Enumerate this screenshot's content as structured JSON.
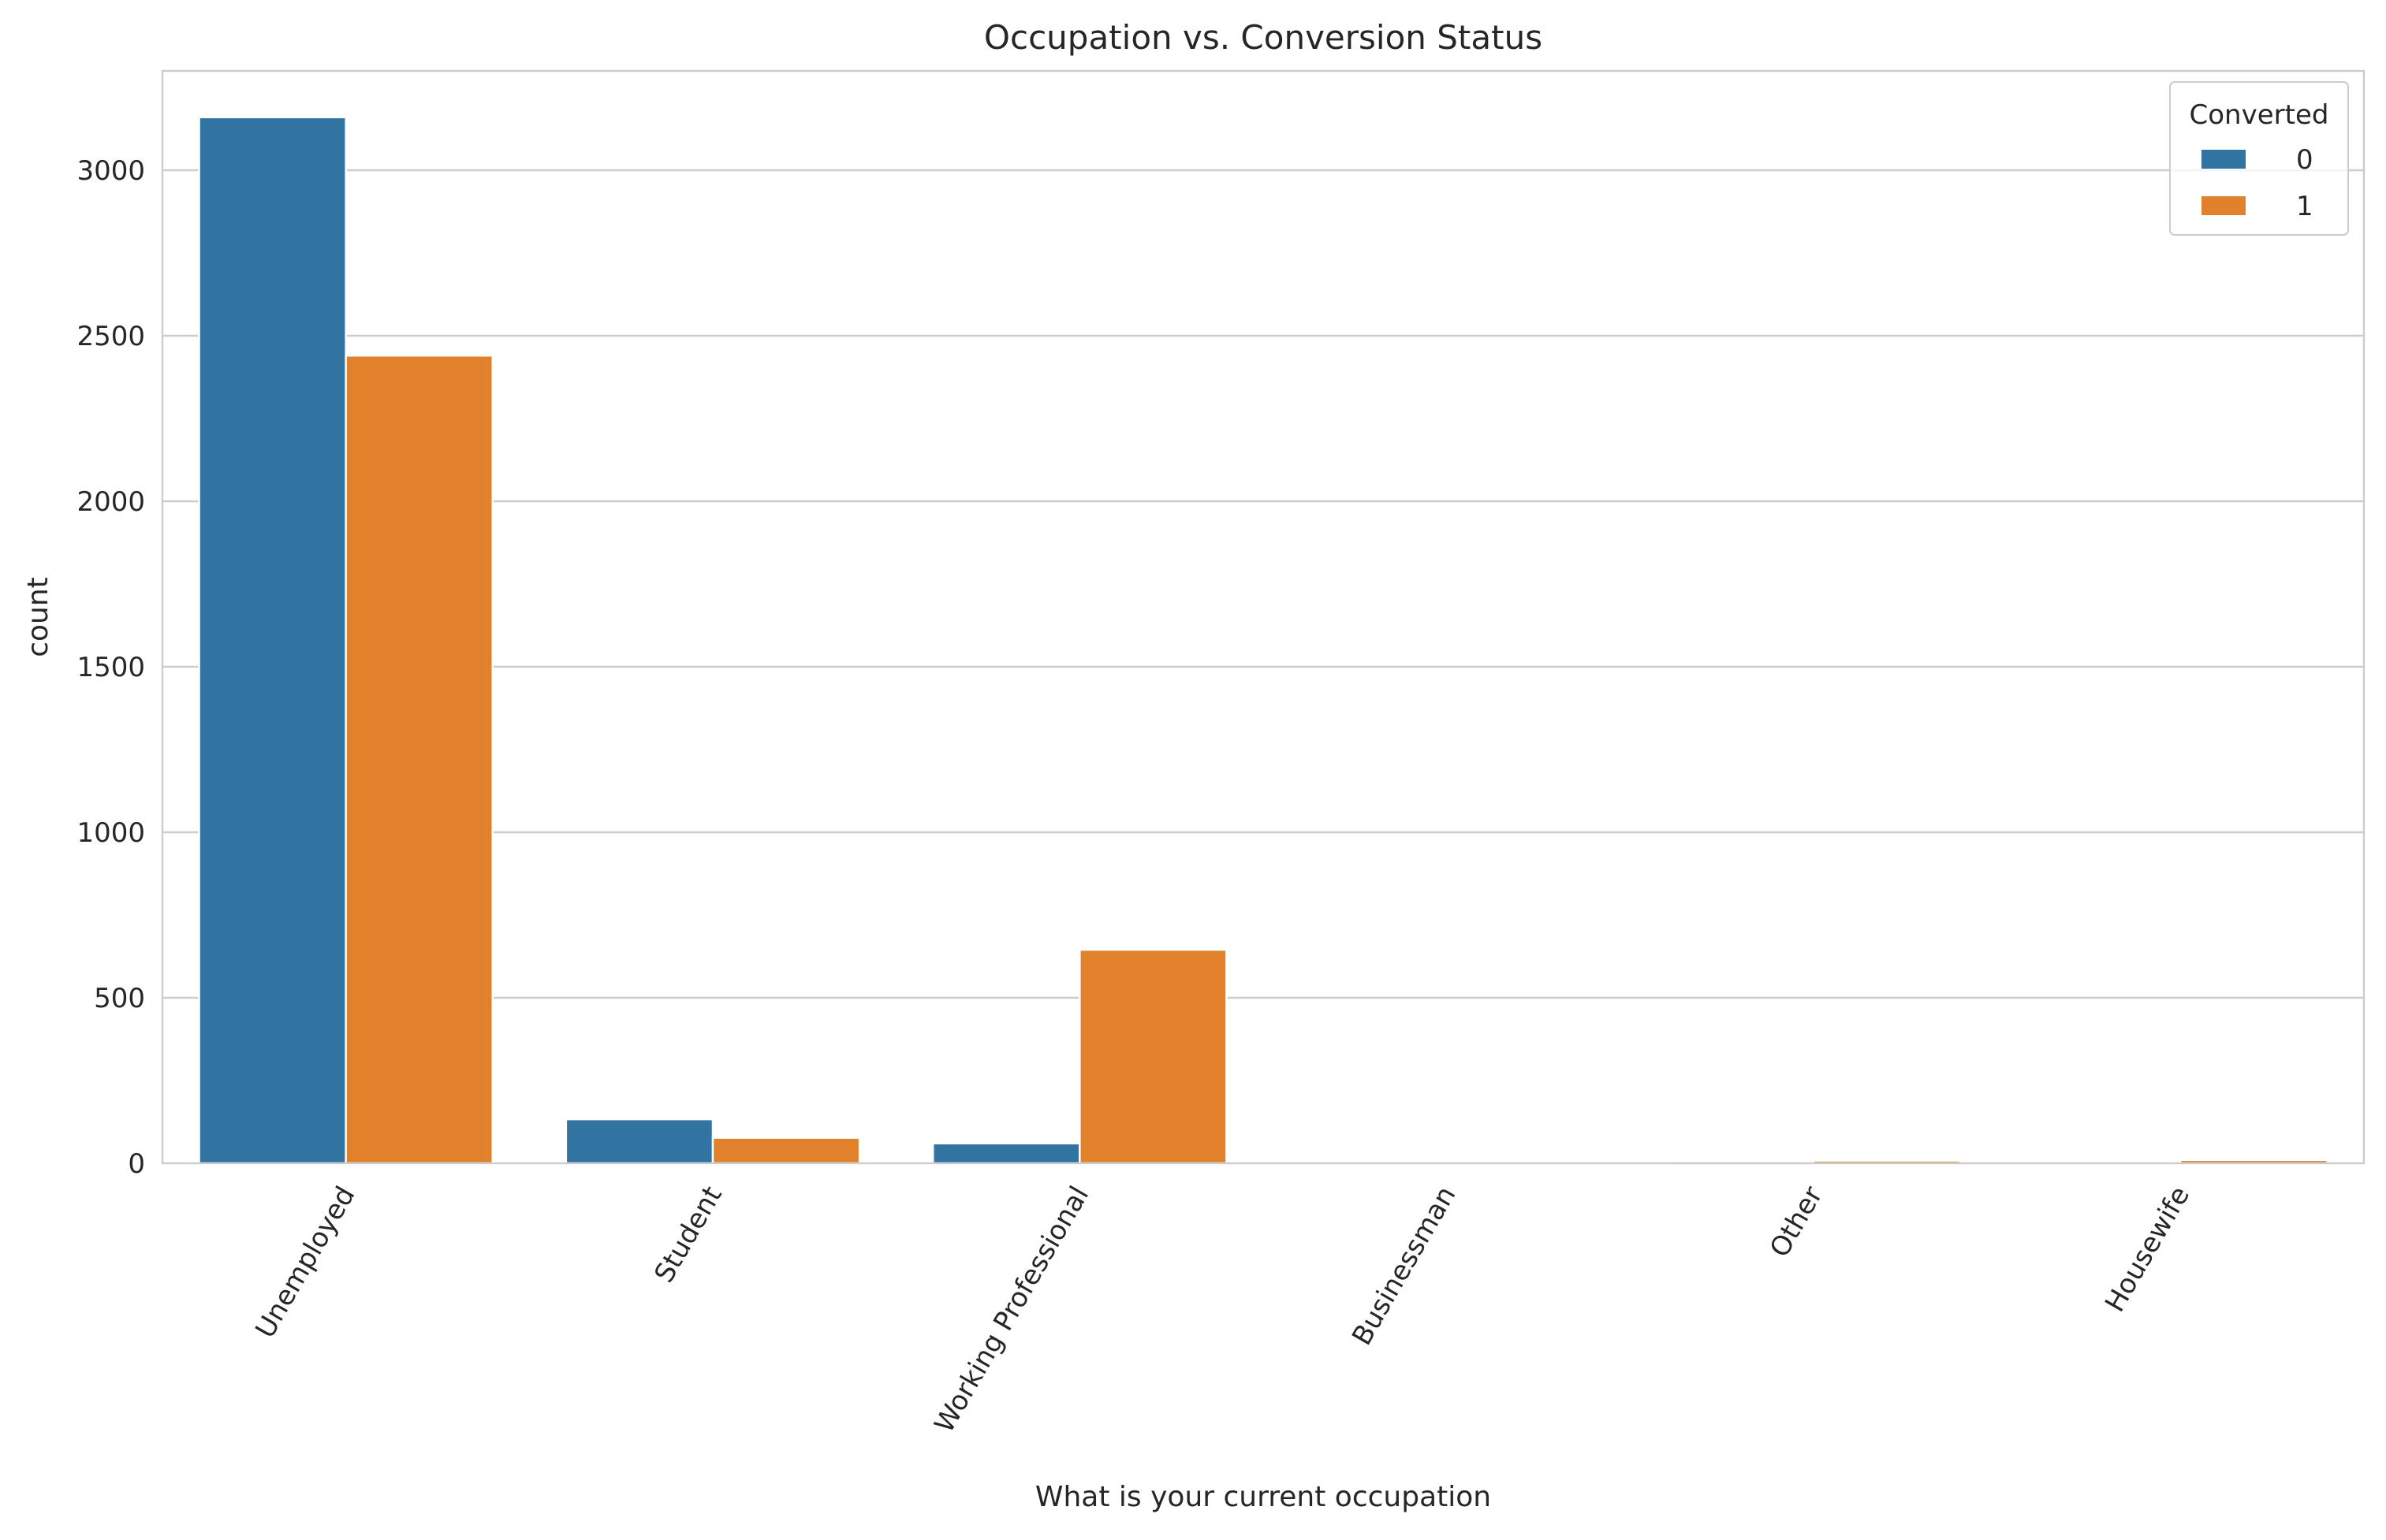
{
  "chart_data": {
    "type": "bar",
    "title": "Occupation vs. Conversion Status",
    "xlabel": "What is your current occupation",
    "ylabel": "count",
    "categories": [
      "Unemployed",
      "Student",
      "Working Professional",
      "Businessman",
      "Other",
      "Housewife"
    ],
    "series": [
      {
        "name": "0",
        "color": "#3274a1",
        "values": [
          3160,
          133,
          60,
          3,
          6,
          0
        ]
      },
      {
        "name": "1",
        "color": "#e1812c",
        "values": [
          2440,
          77,
          645,
          5,
          8,
          10
        ]
      }
    ],
    "ylim": [
      0,
      3300
    ],
    "yticks": [
      0,
      500,
      1000,
      1500,
      2000,
      2500,
      3000
    ],
    "grid": "horizontal",
    "legend": {
      "title": "Converted",
      "placement": "top-right"
    }
  }
}
